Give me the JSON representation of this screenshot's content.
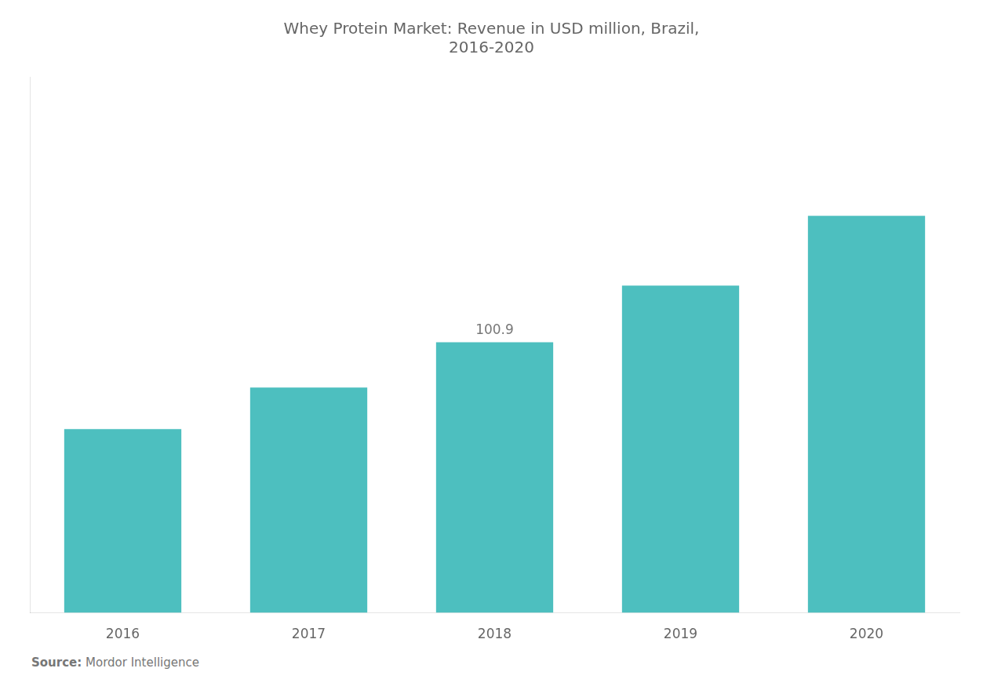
{
  "chart_data": {
    "type": "bar",
    "title": "Whey Protein Market: Revenue in USD million, Brazil,\n2016-2020",
    "categories": [
      "2016",
      "2017",
      "2018",
      "2019",
      "2020"
    ],
    "values": [
      68.5,
      84.0,
      100.9,
      122.0,
      148.0
    ],
    "color": "#4DBFBF",
    "ylim": [
      0,
      199.8
    ],
    "grid": false,
    "tick_labels": "x",
    "annotations": [
      {
        "x": "2018",
        "y": 100.9,
        "text": "100.9"
      }
    ],
    "source": "Source: Mordor Intelligence"
  }
}
